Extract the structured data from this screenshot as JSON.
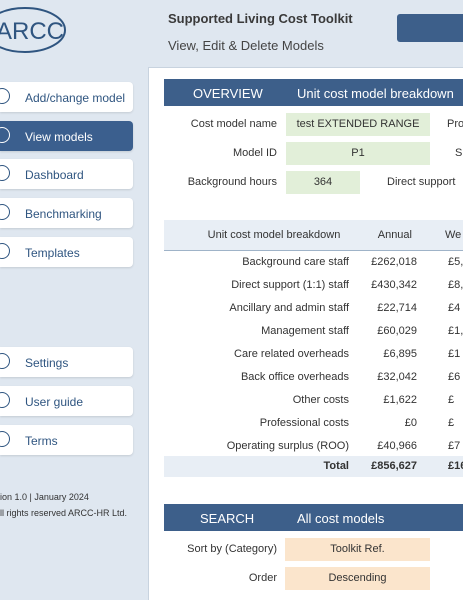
{
  "logo": "ARCC",
  "header": {
    "title": "Supported Living Cost Toolkit",
    "subtitle": "View, Edit & Delete Models"
  },
  "nav": {
    "top": [
      "Add/change model",
      "View models",
      "Dashboard",
      "Benchmarking",
      "Templates"
    ],
    "bottom": [
      "Settings",
      "User guide",
      "Terms"
    ],
    "active": 1
  },
  "footer": [
    "ion 1.0 | January 2024",
    "ll rights reserved ARCC-HR Ltd."
  ],
  "overview": {
    "heading": "OVERVIEW",
    "subheading": "Unit cost model breakdown",
    "fields": [
      {
        "label": "Cost model name",
        "value": "test EXTENDED RANGE"
      },
      {
        "label": "Model ID",
        "value": "P1"
      },
      {
        "label": "Background hours",
        "value": "364"
      }
    ],
    "side_labels": [
      "Pro",
      "S",
      "Direct support"
    ]
  },
  "table": {
    "columns": [
      "Unit cost model breakdown",
      "Annual",
      "We"
    ],
    "rows": [
      [
        "Background care staff",
        "£262,018",
        "£5,"
      ],
      [
        "Direct support (1:1) staff",
        "£430,342",
        "£8,"
      ],
      [
        "Ancillary and admin staff",
        "£22,714",
        "£4"
      ],
      [
        "Management staff",
        "£60,029",
        "£1,"
      ],
      [
        "Care related overheads",
        "£6,895",
        "£1"
      ],
      [
        "Back office overheads",
        "£32,042",
        "£6"
      ],
      [
        "Other costs",
        "£1,622",
        "£"
      ],
      [
        "Professional costs",
        "£0",
        "£"
      ],
      [
        "Operating surplus (ROO)",
        "£40,966",
        "£7"
      ]
    ],
    "total": [
      "Total",
      "£856,627",
      "£16"
    ]
  },
  "search": {
    "heading": "SEARCH",
    "subheading": "All cost models",
    "fields": [
      {
        "label": "Sort by (Category)",
        "value": "Toolkit Ref."
      },
      {
        "label": "Order",
        "value": "Descending"
      }
    ]
  }
}
